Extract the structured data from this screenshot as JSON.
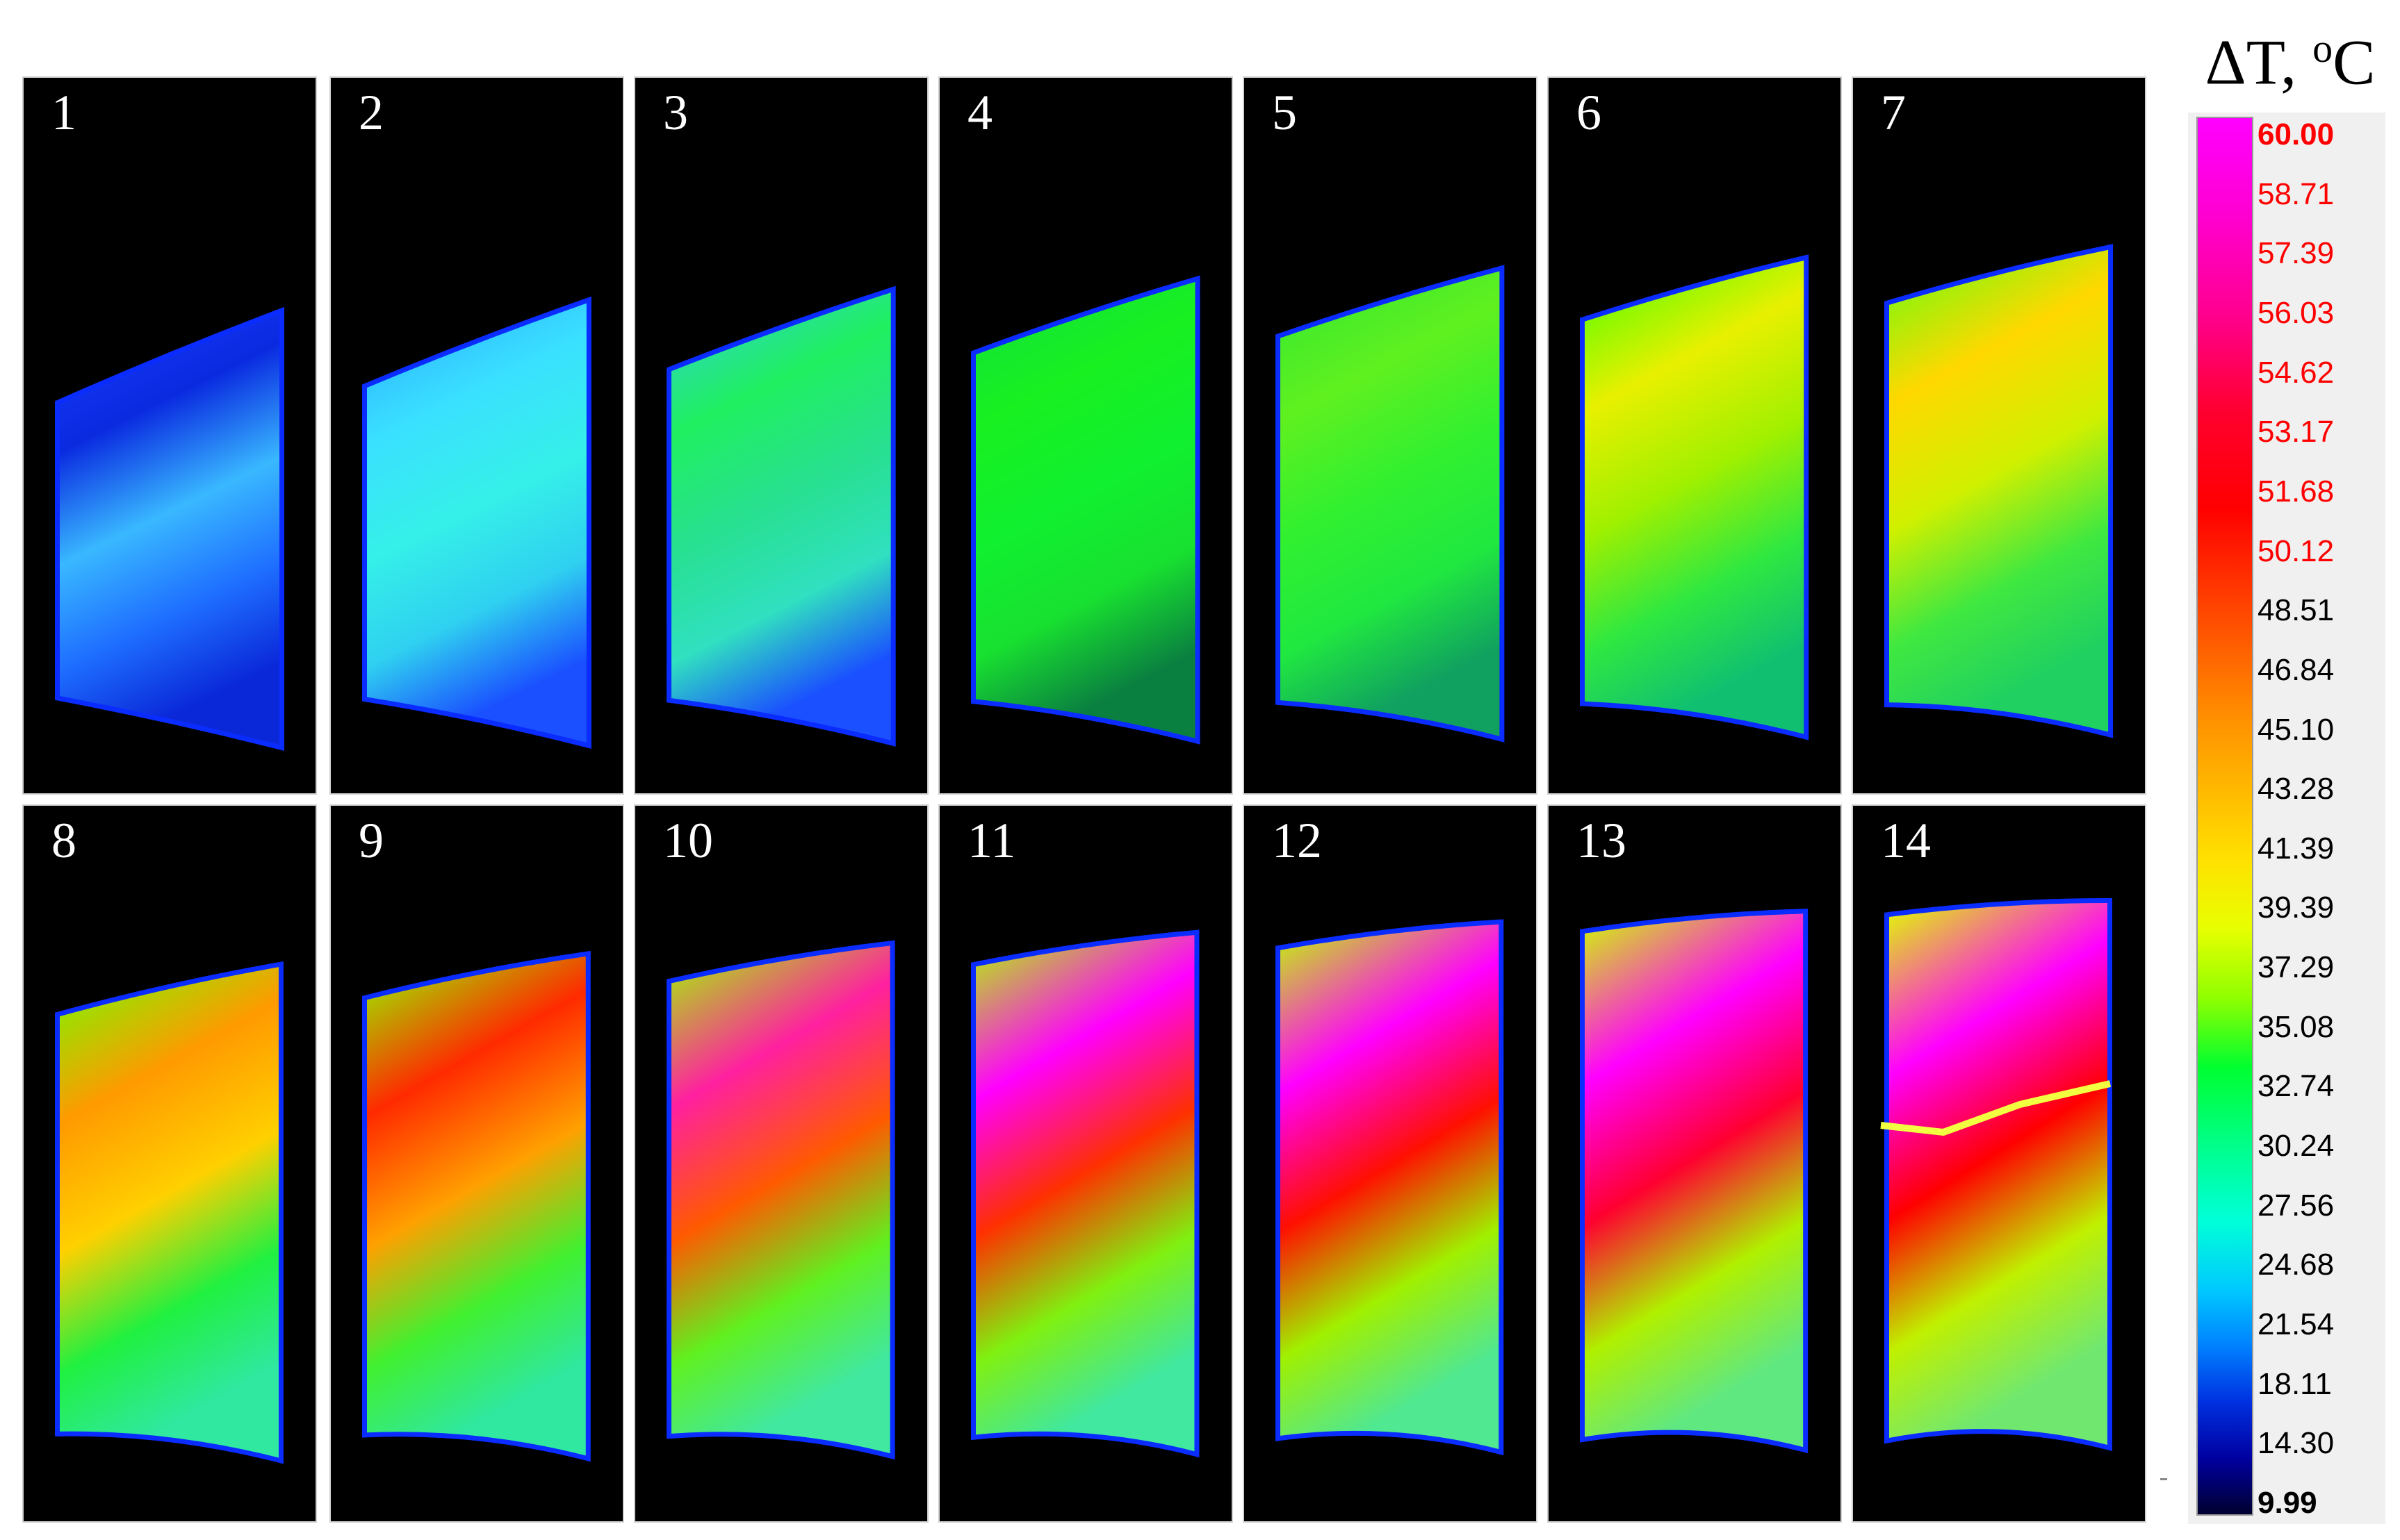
{
  "legend": {
    "title_main": "ΔT, ",
    "title_sup": "o",
    "title_unit": "C",
    "ticks": [
      {
        "label": "60.00",
        "color": "#ff0000",
        "bold": true
      },
      {
        "label": "58.71",
        "color": "#ff0000"
      },
      {
        "label": "57.39",
        "color": "#ff0000"
      },
      {
        "label": "56.03",
        "color": "#ff0000"
      },
      {
        "label": "54.62",
        "color": "#ff0000"
      },
      {
        "label": "53.17",
        "color": "#ff0000"
      },
      {
        "label": "51.68",
        "color": "#ff0000"
      },
      {
        "label": "50.12",
        "color": "#ff0000"
      },
      {
        "label": "48.51",
        "color": "#000000"
      },
      {
        "label": "46.84",
        "color": "#000000"
      },
      {
        "label": "45.10",
        "color": "#000000"
      },
      {
        "label": "43.28",
        "color": "#000000"
      },
      {
        "label": "41.39",
        "color": "#000000"
      },
      {
        "label": "39.39",
        "color": "#000000"
      },
      {
        "label": "37.29",
        "color": "#000000"
      },
      {
        "label": "35.08",
        "color": "#000000"
      },
      {
        "label": "32.74",
        "color": "#000000"
      },
      {
        "label": "30.24",
        "color": "#000000"
      },
      {
        "label": "27.56",
        "color": "#000000"
      },
      {
        "label": "24.68",
        "color": "#000000"
      },
      {
        "label": "21.54",
        "color": "#000000"
      },
      {
        "label": "18.11",
        "color": "#000000"
      },
      {
        "label": "14.30",
        "color": "#000000"
      },
      {
        "label": "9.99",
        "color": "#000000",
        "bold": true
      }
    ]
  },
  "frames": [
    {
      "label": "1",
      "colors": [
        "#1a3cff",
        "#0a2ae0",
        "#39b8ff",
        "#1e6eff",
        "#0a28d8"
      ]
    },
    {
      "label": "2",
      "colors": [
        "#2aa8ff",
        "#3ae0ff",
        "#35f0e8",
        "#2fd0f0",
        "#1a50ff"
      ]
    },
    {
      "label": "3",
      "colors": [
        "#30d0d8",
        "#20f060",
        "#28e090",
        "#30e0c0",
        "#1a50ff"
      ]
    },
    {
      "label": "4",
      "colors": [
        "#10e040",
        "#18f020",
        "#10f030",
        "#18e030",
        "#0a8040"
      ]
    },
    {
      "label": "5",
      "colors": [
        "#30e830",
        "#60f020",
        "#30f030",
        "#20e840",
        "#10a060"
      ]
    },
    {
      "label": "6",
      "colors": [
        "#40ff00",
        "#e8f000",
        "#a0f000",
        "#30e840",
        "#10c070"
      ]
    },
    {
      "label": "7",
      "colors": [
        "#60ff10",
        "#ffd800",
        "#d0f000",
        "#40e840",
        "#20d060"
      ]
    },
    {
      "label": "8",
      "colors": [
        "#70ff00",
        "#ff9a00",
        "#ffd000",
        "#20f040",
        "#30e8a0"
      ]
    },
    {
      "label": "9",
      "colors": [
        "#90ff00",
        "#ff2a00",
        "#ffa000",
        "#40f030",
        "#30e8a0"
      ]
    },
    {
      "label": "10",
      "colors": [
        "#a0ff00",
        "#ff20a0",
        "#ff5a00",
        "#60f020",
        "#40e8a0"
      ]
    },
    {
      "label": "11",
      "colors": [
        "#b0ff00",
        "#ff00ff",
        "#ff3000",
        "#80f010",
        "#40e8a0"
      ]
    },
    {
      "label": "12",
      "colors": [
        "#c0ff00",
        "#ff00ff",
        "#ff1000",
        "#a0f000",
        "#50e890"
      ]
    },
    {
      "label": "13",
      "colors": [
        "#d0ff00",
        "#ff00ff",
        "#ff0030",
        "#b0f000",
        "#60e880"
      ]
    },
    {
      "label": "14",
      "colors": [
        "#e0ff00",
        "#ff00ff",
        "#ff0000",
        "#c0f000",
        "#70e870"
      ]
    }
  ]
}
